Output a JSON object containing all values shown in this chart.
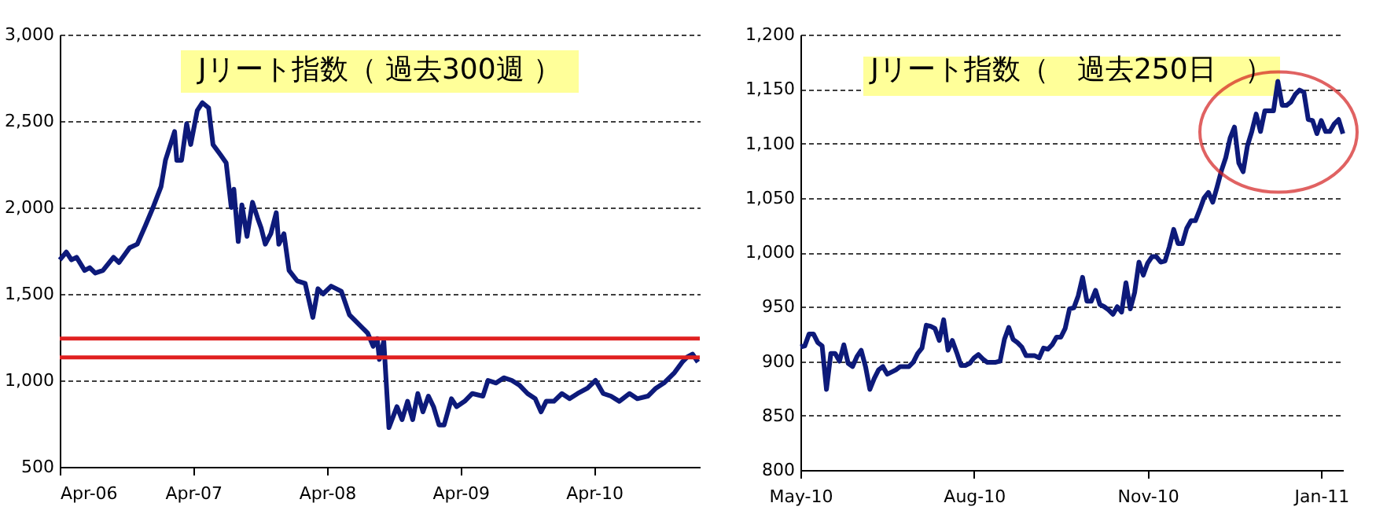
{
  "chart_data": [
    {
      "type": "line",
      "title": "Jリート指数（ 過去300週 ）",
      "x": [
        "2006-04-01",
        "2006-04-19",
        "2006-05-03",
        "2006-05-17",
        "2006-06-08",
        "2006-06-22",
        "2006-07-07",
        "2006-07-28",
        "2006-08-26",
        "2006-09-10",
        "2006-10-09",
        "2006-10-30",
        "2006-11-21",
        "2006-12-12",
        "2007-01-03",
        "2007-01-15",
        "2007-02-09",
        "2007-02-15",
        "2007-02-28",
        "2007-03-14",
        "2007-03-25",
        "2007-04-12",
        "2007-04-26",
        "2007-05-13",
        "2007-05-25",
        "2007-06-15",
        "2007-06-30",
        "2007-07-14",
        "2007-07-21",
        "2007-08-02",
        "2007-08-12",
        "2007-08-26",
        "2007-09-10",
        "2007-09-24",
        "2007-10-04",
        "2007-10-15",
        "2007-10-30",
        "2007-11-14",
        "2007-11-21",
        "2007-12-05",
        "2007-12-19",
        "2008-01-10",
        "2008-02-01",
        "2008-02-22",
        "2008-03-07",
        "2008-03-21",
        "2008-04-12",
        "2008-04-26",
        "2008-05-10",
        "2008-06-01",
        "2008-06-15",
        "2008-06-30",
        "2008-07-21",
        "2008-08-05",
        "2008-08-16",
        "2008-08-22",
        "2008-09-03",
        "2008-09-17",
        "2008-10-09",
        "2008-10-23",
        "2008-11-07",
        "2008-11-21",
        "2008-12-05",
        "2008-12-19",
        "2009-01-03",
        "2009-01-17",
        "2009-02-01",
        "2009-02-15",
        "2009-03-07",
        "2009-03-21",
        "2009-04-12",
        "2009-05-03",
        "2009-06-01",
        "2009-06-15",
        "2009-07-07",
        "2009-07-28",
        "2009-08-19",
        "2009-09-10",
        "2009-10-01",
        "2009-10-22",
        "2009-11-07",
        "2009-11-21",
        "2009-12-12",
        "2010-01-03",
        "2010-01-24",
        "2010-02-15",
        "2010-03-14",
        "2010-04-05",
        "2010-04-26",
        "2010-05-17",
        "2010-06-09",
        "2010-07-07",
        "2010-07-28",
        "2010-08-26",
        "2010-09-17",
        "2010-10-09",
        "2010-11-07",
        "2010-11-28",
        "2010-12-12",
        "2010-12-26",
        "2011-01-10"
      ],
      "series": [
        {
          "color": "#0d1a7a",
          "values": [
            1697,
            1742,
            1697,
            1712,
            1636,
            1652,
            1621,
            1636,
            1712,
            1682,
            1767,
            1788,
            1894,
            2000,
            2121,
            2273,
            2439,
            2273,
            2273,
            2485,
            2364,
            2561,
            2606,
            2576,
            2364,
            2303,
            2258,
            2000,
            2106,
            1803,
            2015,
            1833,
            2030,
            1939,
            1879,
            1788,
            1848,
            1970,
            1788,
            1848,
            1636,
            1576,
            1561,
            1364,
            1530,
            1500,
            1545,
            1530,
            1515,
            1379,
            1349,
            1318,
            1273,
            1197,
            1242,
            1121,
            1227,
            727,
            848,
            773,
            879,
            773,
            924,
            818,
            909,
            848,
            742,
            742,
            894,
            848,
            879,
            924,
            909,
            1000,
            985,
            1015,
            1000,
            970,
            924,
            894,
            818,
            879,
            879,
            924,
            894,
            924,
            955,
            1000,
            924,
            909,
            879,
            924,
            894,
            909,
            955,
            985,
            1045,
            1106,
            1136,
            1152,
            1106
          ]
        }
      ],
      "xlim": [
        "2006-04-01",
        "2011-01-15"
      ],
      "xticks": [
        {
          "value": "2006-04-01",
          "label": "Apr-06"
        },
        {
          "value": "2007-04-01",
          "label": "Apr-07"
        },
        {
          "value": "2008-04-01",
          "label": "Apr-08"
        },
        {
          "value": "2009-04-01",
          "label": "Apr-09"
        },
        {
          "value": "2010-04-01",
          "label": "Apr-10"
        }
      ],
      "ylim": [
        500,
        3000
      ],
      "yticks": [
        {
          "value": 500,
          "label": "500"
        },
        {
          "value": 1000,
          "label": "1,000"
        },
        {
          "value": 1500,
          "label": "1,500"
        },
        {
          "value": 2000,
          "label": "2,000"
        },
        {
          "value": 2500,
          "label": "2,500"
        },
        {
          "value": 3000,
          "label": "3,000"
        }
      ],
      "ref_lines": [
        {
          "axis": "y",
          "value": 1242,
          "color": "#e02020"
        },
        {
          "axis": "y",
          "value": 1133,
          "color": "#e02020"
        }
      ],
      "grid": "y",
      "legend": false,
      "marker": "none",
      "line_style": "solid"
    },
    {
      "type": "line",
      "title": "Jリート指数（　過去250日　）",
      "categories": [
        "May-10",
        null,
        null,
        null,
        null,
        null,
        null,
        null,
        null,
        null,
        null,
        null,
        null,
        null,
        null,
        null,
        null,
        null,
        null,
        null,
        null,
        null,
        null,
        null,
        null,
        null,
        null,
        null,
        null,
        null,
        null,
        null,
        null,
        null,
        null,
        null,
        null,
        null,
        null,
        null,
        "Aug-10",
        null,
        null,
        null,
        null,
        null,
        null,
        null,
        null,
        null,
        null,
        null,
        null,
        null,
        null,
        null,
        null,
        null,
        null,
        null,
        null,
        null,
        null,
        null,
        null,
        null,
        null,
        null,
        null,
        null,
        null,
        null,
        null,
        null,
        null,
        null,
        null,
        null,
        null,
        null,
        "Nov-10",
        null,
        null,
        null,
        null,
        null,
        null,
        null,
        null,
        null,
        null,
        null,
        null,
        null,
        null,
        null,
        null,
        null,
        null,
        null,
        null,
        null,
        null,
        null,
        null,
        null,
        null,
        null,
        null,
        null,
        null,
        null,
        null,
        null,
        null,
        null,
        null,
        null,
        null,
        null,
        "Jan-11",
        null,
        null,
        null,
        null,
        null
      ],
      "series": [
        {
          "color": "#0d1a7a",
          "values": [
            913,
            914,
            925,
            925,
            917,
            914,
            874,
            907,
            907,
            900,
            915,
            898,
            895,
            904,
            910,
            895,
            874,
            884,
            892,
            895,
            888,
            890,
            892,
            895,
            895,
            895,
            899,
            907,
            912,
            933,
            932,
            930,
            919,
            938,
            910,
            919,
            908,
            896,
            896,
            898,
            903,
            906,
            902,
            899,
            899,
            899,
            900,
            920,
            931,
            920,
            917,
            913,
            905,
            905,
            905,
            903,
            912,
            911,
            915,
            922,
            922,
            930,
            948,
            949,
            960,
            977,
            955,
            955,
            965,
            952,
            950,
            947,
            943,
            950,
            945,
            972,
            948,
            963,
            991,
            979,
            990,
            996,
            996,
            991,
            992,
            1005,
            1021,
            1008,
            1008,
            1022,
            1029,
            1029,
            1039,
            1050,
            1055,
            1046,
            1060,
            1075,
            1087,
            1105,
            1115,
            1082,
            1074,
            1098,
            1111,
            1127,
            1111,
            1130,
            1130,
            1130,
            1157,
            1135,
            1135,
            1138,
            1145,
            1149,
            1147,
            1122,
            1121,
            1109,
            1121,
            1111,
            1111,
            1118,
            1122,
            1109
          ]
        }
      ],
      "ylim": [
        800,
        1200
      ],
      "yticks": [
        {
          "value": 800,
          "label": "800"
        },
        {
          "value": 850,
          "label": "850"
        },
        {
          "value": 900,
          "label": "900"
        },
        {
          "value": 950,
          "label": "950"
        },
        {
          "value": 1000,
          "label": "1,000"
        },
        {
          "value": 1050,
          "label": "1,050"
        },
        {
          "value": 1100,
          "label": "1,100"
        },
        {
          "value": 1150,
          "label": "1,150"
        },
        {
          "value": 1200,
          "label": "1,200"
        }
      ],
      "grid": "y",
      "legend": false,
      "marker": "none",
      "line_style": "solid"
    }
  ]
}
